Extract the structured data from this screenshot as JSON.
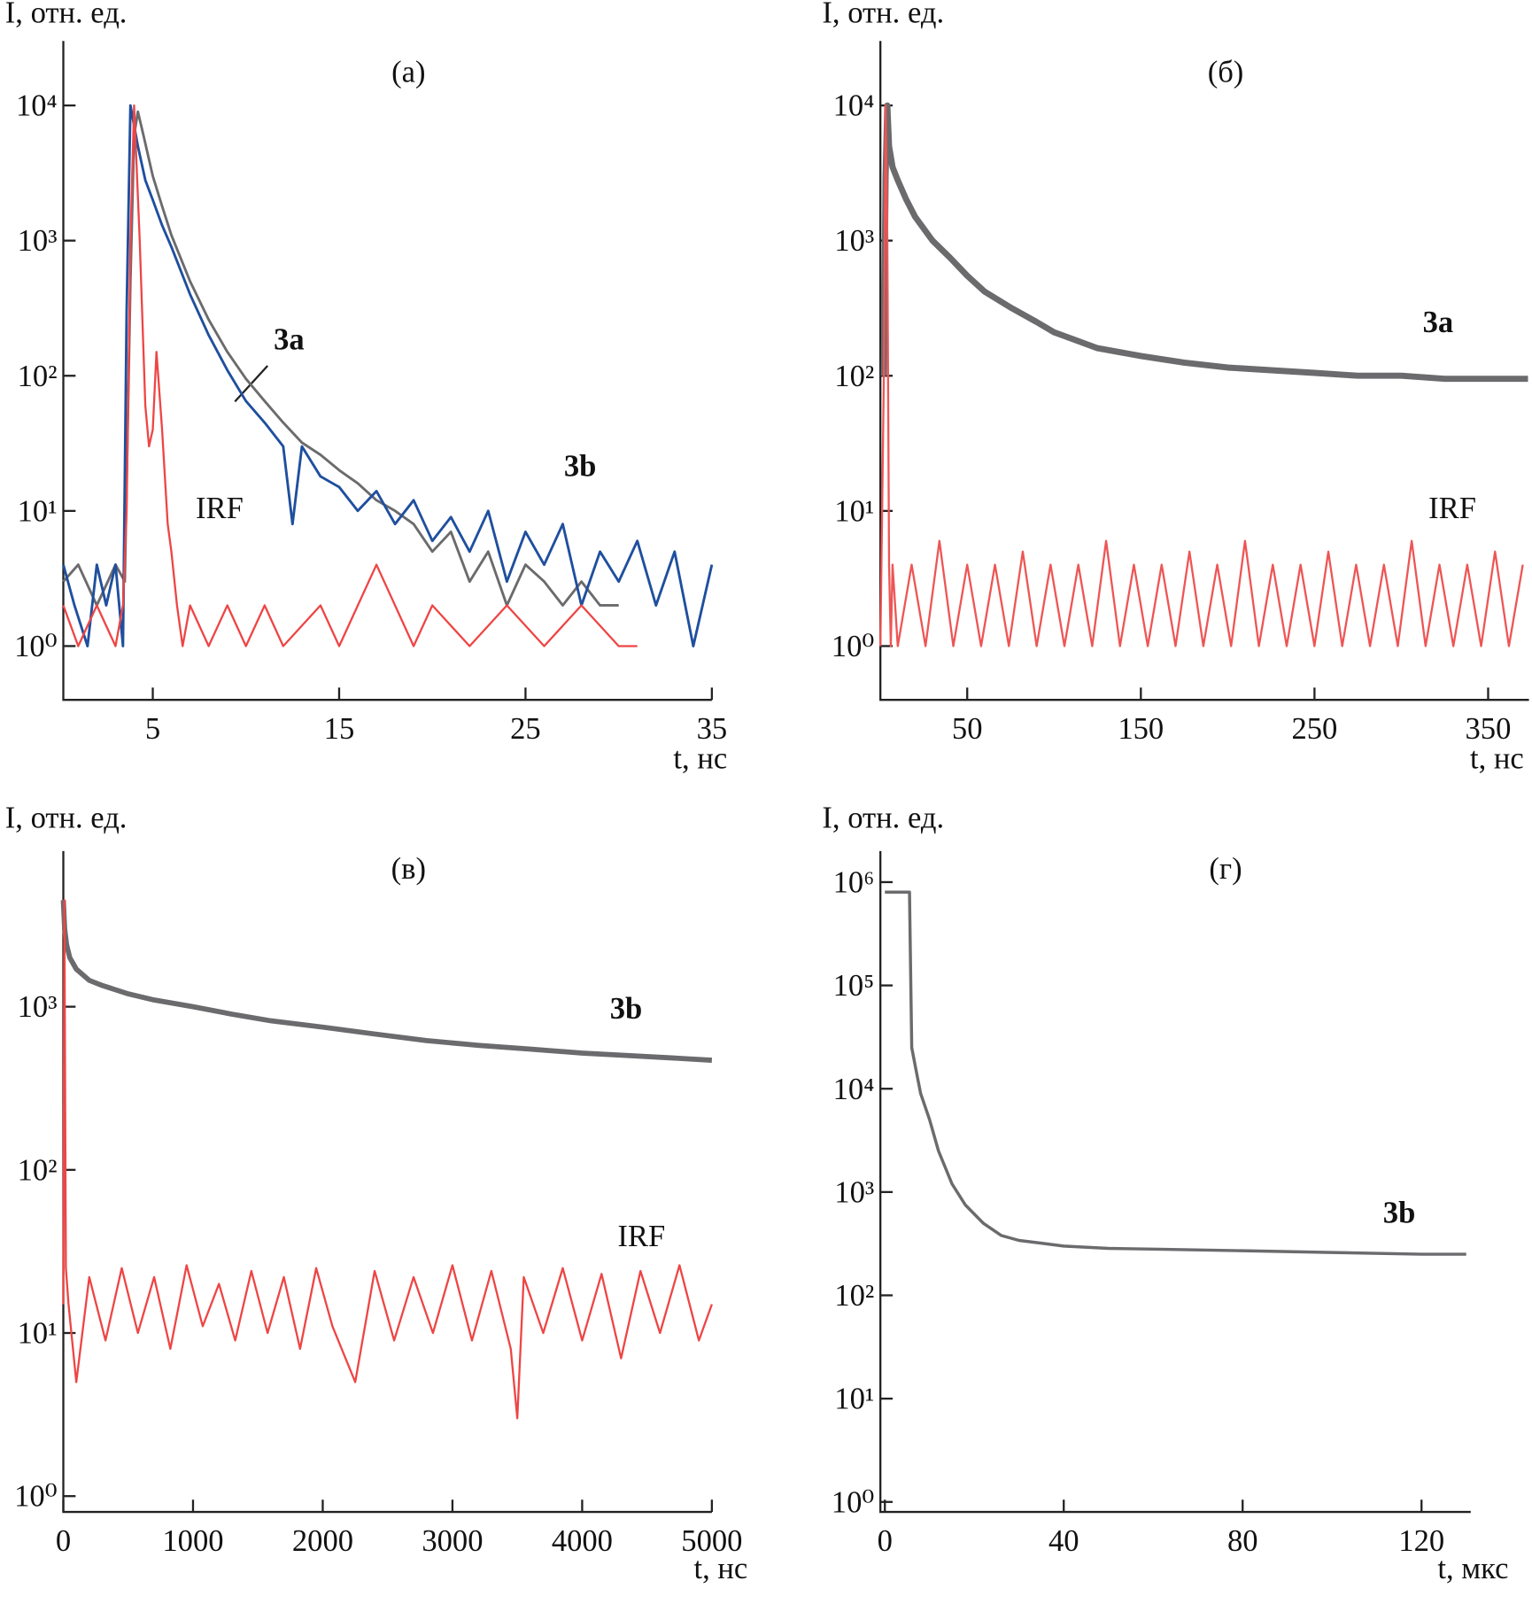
{
  "chart_data": [
    {
      "type": "line",
      "title": "(а)",
      "xlabel": "t, нс",
      "ylabel": "I,  отн. ед.",
      "ylog": true,
      "xlim": [
        0.2,
        35
      ],
      "xticks": [
        5,
        15,
        25,
        35
      ],
      "ylim": [
        0.4,
        30000
      ],
      "yticks": [
        {
          "value": 1,
          "label": "10⁰"
        },
        {
          "value": 10,
          "label": "10¹"
        },
        {
          "value": 100,
          "label": "10²"
        },
        {
          "value": 1000,
          "label": "10³"
        },
        {
          "value": 10000,
          "label": "10⁴"
        }
      ],
      "series": [
        {
          "name": "3a",
          "color": "#6b6b6e",
          "x": [
            0.2,
            1,
            2,
            3,
            3.5,
            3.8,
            4.0,
            4.2,
            4.5,
            5,
            5.5,
            6,
            7,
            8,
            9,
            10,
            11,
            12,
            13,
            14,
            15,
            16,
            17,
            18,
            19,
            20,
            21,
            22,
            23,
            24,
            25,
            26,
            27,
            28,
            29,
            30
          ],
          "values": [
            3,
            4,
            2,
            4,
            3,
            500,
            6000,
            9000,
            6000,
            3000,
            1800,
            1100,
            500,
            260,
            150,
            95,
            65,
            45,
            32,
            26,
            20,
            16,
            12,
            10,
            8,
            5,
            7,
            3,
            5,
            2,
            4,
            3,
            2,
            3,
            2,
            2
          ]
        },
        {
          "name": "3b",
          "color": "#1f4f9e",
          "x": [
            0.2,
            0.8,
            1.5,
            2,
            2.5,
            3,
            3.4,
            3.6,
            3.8,
            4.2,
            4.6,
            5,
            5.5,
            6,
            7,
            8,
            9,
            10,
            11,
            12,
            12.5,
            13,
            14,
            15,
            16,
            17,
            18,
            19,
            20,
            21,
            22,
            23,
            24,
            25,
            26,
            27,
            28,
            29,
            30,
            31,
            32,
            33,
            34,
            35
          ],
          "values": [
            4,
            2,
            1,
            4,
            2,
            4,
            1,
            300,
            10000,
            5000,
            2800,
            2000,
            1300,
            900,
            400,
            200,
            110,
            65,
            45,
            30,
            8,
            30,
            18,
            15,
            10,
            14,
            8,
            12,
            6,
            9,
            5,
            10,
            3,
            7,
            4,
            8,
            2,
            5,
            3,
            6,
            2,
            5,
            1,
            4
          ]
        },
        {
          "name": "IRF",
          "color": "#ee4545",
          "x": [
            0.2,
            1,
            2,
            3,
            3.4,
            3.6,
            3.8,
            4.0,
            4.3,
            4.6,
            4.8,
            5.0,
            5.2,
            5.5,
            5.8,
            6.0,
            6.3,
            6.6,
            7,
            8,
            9,
            10,
            11,
            12,
            14,
            15,
            17,
            19,
            20,
            22,
            24,
            26,
            28,
            30,
            31
          ],
          "values": [
            2,
            1,
            2,
            1,
            2,
            10,
            1000,
            10000,
            1000,
            60,
            30,
            40,
            150,
            40,
            8,
            5,
            2,
            1,
            2,
            1,
            2,
            1,
            2,
            1,
            2,
            1,
            4,
            1,
            2,
            1,
            2,
            1,
            2,
            1,
            1
          ]
        }
      ]
    },
    {
      "type": "line",
      "title": "(б)",
      "xlabel": "t, нс",
      "ylabel": "I,  отн. ед.",
      "ylog": true,
      "xlim": [
        0,
        373.5
      ],
      "xticks": [
        50,
        150,
        250,
        350
      ],
      "ylim": [
        0.4,
        30000
      ],
      "yticks": [
        {
          "value": 1,
          "label": "10⁰"
        },
        {
          "value": 10,
          "label": "10¹"
        },
        {
          "value": 100,
          "label": "10²"
        },
        {
          "value": 1000,
          "label": "10³"
        },
        {
          "value": 10000,
          "label": "10⁴"
        }
      ],
      "series": [
        {
          "name": "3a",
          "color": "#6b6b6e",
          "x": [
            2,
            3,
            4,
            5,
            7,
            10,
            15,
            20,
            30,
            40,
            50,
            60,
            75,
            90,
            100,
            125,
            150,
            175,
            200,
            225,
            250,
            275,
            300,
            325,
            350,
            373
          ],
          "values": [
            100,
            3000,
            10000,
            5000,
            3500,
            2800,
            2000,
            1500,
            1000,
            750,
            550,
            420,
            320,
            250,
            210,
            160,
            140,
            125,
            115,
            110,
            105,
            100,
            100,
            95,
            95,
            95
          ]
        },
        {
          "name": "IRF",
          "color": "#ee5555",
          "x": [
            0,
            2,
            3,
            4,
            5,
            6,
            7,
            10,
            18,
            26,
            34,
            42,
            50,
            58,
            66,
            74,
            82,
            90,
            98,
            106,
            114,
            122,
            130,
            138,
            146,
            154,
            162,
            170,
            178,
            186,
            194,
            202,
            210,
            218,
            226,
            234,
            242,
            250,
            258,
            266,
            274,
            282,
            290,
            298,
            306,
            314,
            322,
            330,
            338,
            346,
            354,
            362,
            370
          ],
          "values": [
            1,
            100,
            10000,
            1000,
            4,
            1,
            4,
            1,
            4,
            1,
            6,
            1,
            4,
            1,
            4,
            1,
            5,
            1,
            4,
            1,
            4,
            1,
            6,
            1,
            4,
            1,
            4,
            1,
            5,
            1,
            4,
            1,
            6,
            1,
            4,
            1,
            4,
            1,
            5,
            1,
            4,
            1,
            4,
            1,
            6,
            1,
            4,
            1,
            4,
            1,
            5,
            1,
            4
          ]
        }
      ]
    },
    {
      "type": "line",
      "title": "(в)",
      "xlabel": "t, нс",
      "ylabel": "I,  отн. ед.",
      "ylog": true,
      "xlim": [
        0,
        5000
      ],
      "xticks": [
        0,
        1000,
        2000,
        3000,
        4000,
        5000
      ],
      "ylim": [
        0.8,
        9000
      ],
      "yticks": [
        {
          "value": 1,
          "label": "10⁰"
        },
        {
          "value": 10,
          "label": "10¹"
        },
        {
          "value": 100,
          "label": "10²"
        },
        {
          "value": 1000,
          "label": "10³"
        }
      ],
      "series": [
        {
          "name": "3b",
          "color": "#6b6b6e",
          "x": [
            0,
            10,
            25,
            50,
            100,
            200,
            300,
            500,
            700,
            1000,
            1300,
            1600,
            2000,
            2400,
            2800,
            3200,
            3600,
            4000,
            4400,
            4800,
            5000
          ],
          "values": [
            4500,
            3000,
            2400,
            2000,
            1700,
            1450,
            1350,
            1200,
            1100,
            1000,
            900,
            820,
            750,
            680,
            620,
            580,
            550,
            520,
            500,
            480,
            470
          ]
        },
        {
          "name": "IRF",
          "color": "#ee4545",
          "x": [
            0,
            8,
            20,
            40,
            100,
            200,
            325,
            450,
            575,
            700,
            825,
            950,
            1075,
            1200,
            1325,
            1450,
            1575,
            1700,
            1825,
            1950,
            2075,
            2250,
            2400,
            2550,
            2700,
            2850,
            3000,
            3150,
            3300,
            3450,
            3500,
            3550,
            3700,
            3850,
            4000,
            4150,
            4300,
            4450,
            4600,
            4750,
            4900,
            5000
          ],
          "values": [
            15,
            4500,
            25,
            15,
            5,
            22,
            9,
            25,
            10,
            22,
            8,
            26,
            11,
            20,
            9,
            24,
            10,
            22,
            8,
            25,
            11,
            5,
            24,
            9,
            22,
            10,
            26,
            9,
            24,
            8,
            3,
            22,
            10,
            25,
            9,
            23,
            7,
            24,
            10,
            26,
            9,
            15
          ]
        }
      ]
    },
    {
      "type": "line",
      "title": "(г)",
      "xlabel": "t, мкс",
      "ylabel": "I,  отн. ед.",
      "ylog": true,
      "xlim": [
        -1,
        131
      ],
      "xticks": [
        0,
        40,
        80,
        120
      ],
      "ylim": [
        0.8,
        2000000
      ],
      "yticks": [
        {
          "value": 1,
          "label": "10⁰"
        },
        {
          "value": 10,
          "label": "10¹"
        },
        {
          "value": 100,
          "label": "10²"
        },
        {
          "value": 1000,
          "label": "10³"
        },
        {
          "value": 10000,
          "label": "10⁴"
        },
        {
          "value": 100000,
          "label": "10⁵"
        },
        {
          "value": 1000000,
          "label": "10⁶"
        }
      ],
      "series": [
        {
          "name": "3b",
          "color": "#6b6b6e",
          "x": [
            0,
            5.5,
            5.8,
            6,
            7,
            8,
            10,
            12,
            15,
            18,
            22,
            26,
            30,
            35,
            40,
            50,
            60,
            80,
            100,
            120,
            130
          ],
          "values": [
            800000,
            800000,
            100000,
            25000,
            15000,
            9000,
            5000,
            2500,
            1200,
            750,
            500,
            380,
            340,
            320,
            300,
            285,
            280,
            270,
            260,
            250,
            250
          ]
        }
      ]
    }
  ]
}
